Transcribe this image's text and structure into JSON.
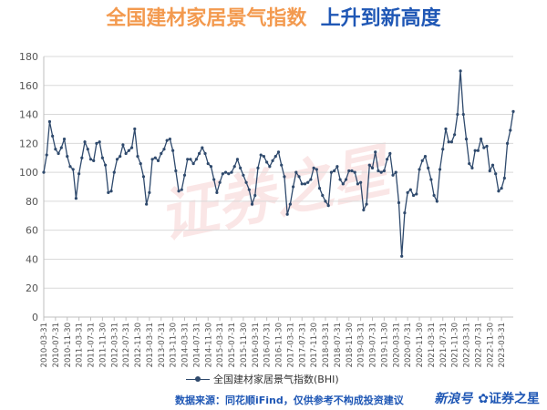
{
  "title": {
    "part1": "全国建材家居景气指数",
    "part2": "上升到新高度"
  },
  "legend_label": "全国建材家居景气指数(BHI)",
  "source_note": "数据来源：同花顺iFind，仅供参考不构成投资建议",
  "brand": {
    "tag": "新浪号",
    "name": "✿证券之星"
  },
  "watermark_text": "证券之星",
  "colors": {
    "line": "#2f4a6d",
    "grid": "#d9d9d9",
    "title_orange": "#f39a4f",
    "title_blue": "#1f57b5"
  },
  "chart_data": {
    "type": "line",
    "ylim": [
      0,
      180
    ],
    "yticks": [
      0,
      20,
      40,
      60,
      80,
      100,
      120,
      140,
      160,
      180
    ],
    "xlim": [
      "2010-03",
      "2023-03"
    ],
    "x_tick_labels": [
      "2010-03-31",
      "2010-07-31",
      "2010-11-30",
      "2011-03-31",
      "2011-07-31",
      "2011-11-30",
      "2012-03-31",
      "2012-07-31",
      "2012-11-30",
      "2013-03-31",
      "2013-07-31",
      "2013-11-30",
      "2014-03-31",
      "2014-07-31",
      "2014-11-30",
      "2015-03-31",
      "2015-07-31",
      "2015-11-30",
      "2016-03-31",
      "2016-07-31",
      "2016-11-30",
      "2017-03-31",
      "2017-07-31",
      "2017-11-30",
      "2018-03-31",
      "2018-07-31",
      "2018-11-30",
      "2019-03-31",
      "2019-07-31",
      "2019-11-30",
      "2020-03-31",
      "2020-07-31",
      "2020-11-30",
      "2021-03-31",
      "2021-07-31",
      "2021-11-30",
      "2022-03-31",
      "2022-07-31",
      "2022-11-30",
      "2023-03-31"
    ],
    "series": [
      {
        "name": "全国建材家居景气指数(BHI)",
        "start": "2010-03",
        "frequency": "monthly",
        "values": [
          100,
          112,
          135,
          125,
          116,
          113,
          117,
          123,
          111,
          104,
          102,
          82,
          99,
          110,
          121,
          116,
          109,
          108,
          120,
          121,
          110,
          105,
          86,
          87,
          100,
          109,
          111,
          119,
          113,
          115,
          117,
          130,
          111,
          106,
          97,
          78,
          86,
          109,
          110,
          108,
          113,
          116,
          122,
          123,
          115,
          101,
          87,
          88,
          98,
          109,
          109,
          106,
          109,
          113,
          117,
          113,
          106,
          104,
          95,
          86,
          93,
          99,
          100,
          99,
          100,
          104,
          109,
          103,
          98,
          93,
          88,
          78,
          84,
          103,
          112,
          111,
          107,
          104,
          108,
          111,
          114,
          105,
          97,
          71,
          78,
          90,
          100,
          97,
          92,
          92,
          93,
          95,
          103,
          102,
          89,
          84,
          80,
          77,
          100,
          101,
          104,
          95,
          92,
          95,
          101,
          101,
          100,
          92,
          93,
          74,
          78,
          105,
          103,
          114,
          101,
          100,
          101,
          109,
          113,
          98,
          100,
          79,
          42,
          72,
          86,
          88,
          84,
          85,
          102,
          108,
          111,
          103,
          95,
          84,
          80,
          102,
          116,
          130,
          121,
          121,
          126,
          140,
          170,
          140,
          123,
          106,
          103,
          115,
          115,
          123,
          117,
          118,
          101,
          105,
          99,
          87,
          89,
          96,
          120,
          129,
          142
        ]
      }
    ]
  }
}
